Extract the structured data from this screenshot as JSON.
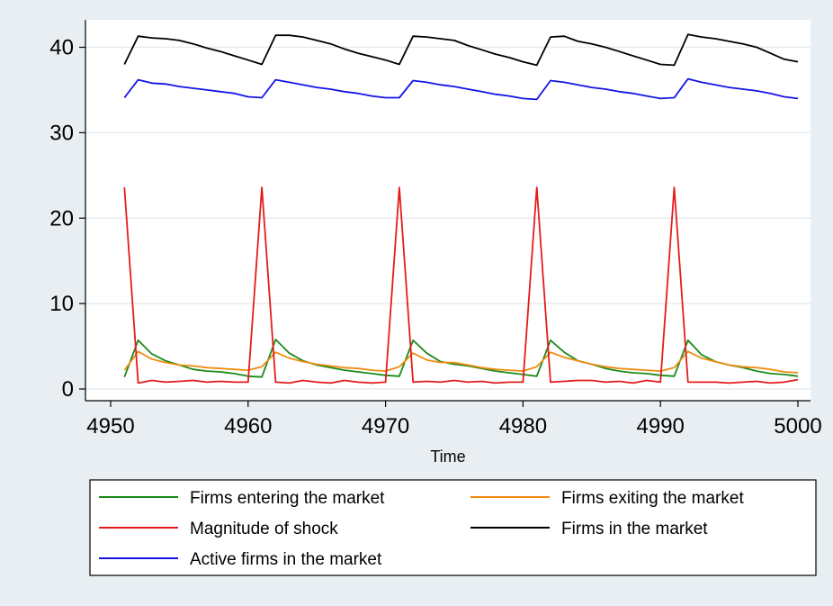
{
  "chart_data": {
    "type": "line",
    "title": "",
    "xlabel": "Time",
    "ylabel": "",
    "xlim": [
      4950,
      5000
    ],
    "ylim": [
      0,
      42
    ],
    "x_ticks": [
      4950,
      4960,
      4970,
      4980,
      4990,
      5000
    ],
    "y_ticks": [
      0,
      10,
      20,
      30,
      40
    ],
    "grid": "horizontal",
    "legend_position": "bottom",
    "x": [
      4951,
      4952,
      4953,
      4954,
      4955,
      4956,
      4957,
      4958,
      4959,
      4960,
      4961,
      4962,
      4963,
      4964,
      4965,
      4966,
      4967,
      4968,
      4969,
      4970,
      4971,
      4972,
      4973,
      4974,
      4975,
      4976,
      4977,
      4978,
      4979,
      4980,
      4981,
      4982,
      4983,
      4984,
      4985,
      4986,
      4987,
      4988,
      4989,
      4990,
      4991,
      4992,
      4993,
      4994,
      4995,
      4996,
      4997,
      4998,
      4999,
      5000
    ],
    "series": [
      {
        "name": "Firms entering the market",
        "color": "#1a8a1a",
        "values": [
          1.4,
          5.7,
          4.1,
          3.3,
          2.8,
          2.3,
          2.1,
          2.0,
          1.8,
          1.5,
          1.4,
          5.8,
          4.2,
          3.3,
          2.8,
          2.5,
          2.2,
          2.0,
          1.8,
          1.6,
          1.5,
          5.7,
          4.2,
          3.2,
          2.9,
          2.7,
          2.4,
          2.1,
          1.9,
          1.7,
          1.5,
          5.7,
          4.3,
          3.3,
          2.9,
          2.4,
          2.1,
          1.9,
          1.8,
          1.6,
          1.5,
          5.7,
          4.0,
          3.2,
          2.8,
          2.5,
          2.1,
          1.8,
          1.7,
          1.5
        ]
      },
      {
        "name": "Firms exiting the market",
        "color": "#f08c10",
        "values": [
          2.2,
          4.4,
          3.5,
          3.1,
          2.8,
          2.7,
          2.5,
          2.4,
          2.3,
          2.2,
          2.6,
          4.3,
          3.6,
          3.2,
          2.9,
          2.7,
          2.5,
          2.4,
          2.2,
          2.1,
          2.6,
          4.2,
          3.4,
          3.1,
          3.1,
          2.8,
          2.5,
          2.3,
          2.2,
          2.1,
          2.6,
          4.3,
          3.7,
          3.3,
          2.9,
          2.6,
          2.4,
          2.3,
          2.2,
          2.1,
          2.5,
          4.4,
          3.6,
          3.2,
          2.8,
          2.6,
          2.5,
          2.3,
          2.0,
          1.9
        ]
      },
      {
        "name": "Magnitude of shock",
        "color": "#e51b1b",
        "values": [
          23.6,
          0.7,
          1.0,
          0.8,
          0.9,
          1.0,
          0.8,
          0.9,
          0.8,
          0.8,
          23.6,
          0.8,
          0.7,
          1.0,
          0.8,
          0.7,
          1.0,
          0.8,
          0.7,
          0.8,
          23.6,
          0.8,
          0.9,
          0.8,
          1.0,
          0.8,
          0.9,
          0.7,
          0.8,
          0.8,
          23.6,
          0.8,
          0.9,
          1.0,
          1.0,
          0.8,
          0.9,
          0.7,
          1.0,
          0.8,
          23.6,
          0.8,
          0.8,
          0.8,
          0.7,
          0.8,
          0.9,
          0.7,
          0.8,
          1.1
        ]
      },
      {
        "name": "Firms in the market",
        "color": "#000000",
        "values": [
          38.0,
          41.3,
          41.1,
          41.0,
          40.8,
          40.4,
          39.9,
          39.5,
          39.0,
          38.5,
          38.0,
          41.4,
          41.4,
          41.2,
          40.8,
          40.4,
          39.8,
          39.3,
          38.9,
          38.5,
          38.0,
          41.3,
          41.2,
          41.0,
          40.8,
          40.2,
          39.7,
          39.2,
          38.8,
          38.3,
          37.9,
          41.2,
          41.3,
          40.7,
          40.4,
          40.0,
          39.5,
          39.0,
          38.5,
          38.0,
          37.9,
          41.5,
          41.2,
          41.0,
          40.7,
          40.4,
          40.0,
          39.3,
          38.6,
          38.3
        ]
      },
      {
        "name": "Active firms in the market",
        "color": "#1414e6",
        "values": [
          34.1,
          36.2,
          35.8,
          35.7,
          35.4,
          35.2,
          35.0,
          34.8,
          34.6,
          34.2,
          34.1,
          36.2,
          35.9,
          35.6,
          35.3,
          35.1,
          34.8,
          34.6,
          34.3,
          34.1,
          34.1,
          36.1,
          35.9,
          35.6,
          35.4,
          35.1,
          34.8,
          34.5,
          34.3,
          34.0,
          33.9,
          36.1,
          35.9,
          35.6,
          35.3,
          35.1,
          34.8,
          34.6,
          34.3,
          34.0,
          34.1,
          36.3,
          35.9,
          35.6,
          35.3,
          35.1,
          34.9,
          34.6,
          34.2,
          34.0
        ]
      }
    ]
  }
}
